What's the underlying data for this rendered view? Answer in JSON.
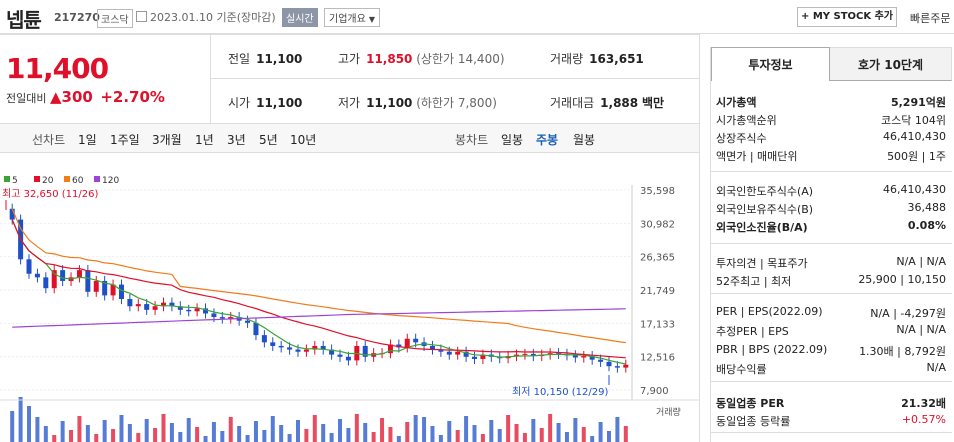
{
  "header": {
    "name": "넵튠",
    "code": "217270",
    "market": "코스닥",
    "date": "2023.01.10 기준(장마감)",
    "realtime": "실시간",
    "corp_info": "기업개요",
    "my_stock": "+ MY STOCK 추가",
    "quick_order": "빠른주문"
  },
  "price": {
    "current": "11,400",
    "compare_label": "전일대비",
    "change": "▲300",
    "rate": "+2.70%"
  },
  "stats": {
    "prev": {
      "label": "전일",
      "value": "11,100"
    },
    "high": {
      "label": "고가",
      "value": "11,850",
      "note": "(상한가 14,400)"
    },
    "volume": {
      "label": "거래량",
      "value": "163,651"
    },
    "open": {
      "label": "시가",
      "value": "11,100"
    },
    "low": {
      "label": "저가",
      "value": "11,100",
      "note": "(하한가 7,800)"
    },
    "amount": {
      "label": "거래대금",
      "value": "1,888",
      "unit": "백만"
    }
  },
  "periods": {
    "line_label": "선차트",
    "items": [
      "1일",
      "1주일",
      "3개월",
      "1년",
      "3년",
      "5년",
      "10년"
    ],
    "candle_label": "봉차트",
    "candles": [
      "일봉",
      "주봉",
      "월봉"
    ]
  },
  "chart_data": {
    "type": "candlestick",
    "legend": [
      {
        "name": "5",
        "color": "#3aa335"
      },
      {
        "name": "20",
        "color": "#e0102b"
      },
      {
        "name": "60",
        "color": "#f07d1a"
      },
      {
        "name": "120",
        "color": "#9b45d6"
      }
    ],
    "yticks": [
      "35,598",
      "30,982",
      "26,365",
      "21,749",
      "17,133",
      "12,516",
      "7,900"
    ],
    "ylim": [
      7900,
      35598
    ],
    "annotations": {
      "high": "최고 32,650 (11/26)",
      "low": "최저 10,150 (12/29)"
    },
    "volume_label": "거래량"
  },
  "info": {
    "tabs": [
      "투자정보",
      "호가 10단계"
    ],
    "rows": [
      {
        "k": "시가총액",
        "v": "5,291억원"
      },
      {
        "k": "시가총액순위",
        "v": "코스닥 104위"
      },
      {
        "k": "상장주식수",
        "v": "46,410,430"
      },
      {
        "k": "액면가 | 매매단위",
        "v": "500원 | 1주"
      },
      {
        "k": "외국인한도주식수(A)",
        "v": "46,410,430"
      },
      {
        "k": "외국인보유주식수(B)",
        "v": "36,488"
      },
      {
        "k": "외국인소진율(B/A)",
        "v": "0.08%"
      },
      {
        "k": "투자의견 | 목표주가",
        "v": "N/A | N/A"
      },
      {
        "k": "52주최고 | 최저",
        "v": "25,900 | 10,150"
      },
      {
        "k": "PER | EPS(2022.09)",
        "v": "N/A | -4,297원"
      },
      {
        "k": "추정PER | EPS",
        "v": "N/A | N/A"
      },
      {
        "k": "PBR | BPS (2022.09)",
        "v": "1.30배 | 8,792원"
      },
      {
        "k": "배당수익률",
        "v": "N/A"
      },
      {
        "k": "동일업종 PER",
        "v": "21.32배"
      },
      {
        "k": "동일업종 등락률",
        "v": "+0.57%"
      }
    ]
  }
}
